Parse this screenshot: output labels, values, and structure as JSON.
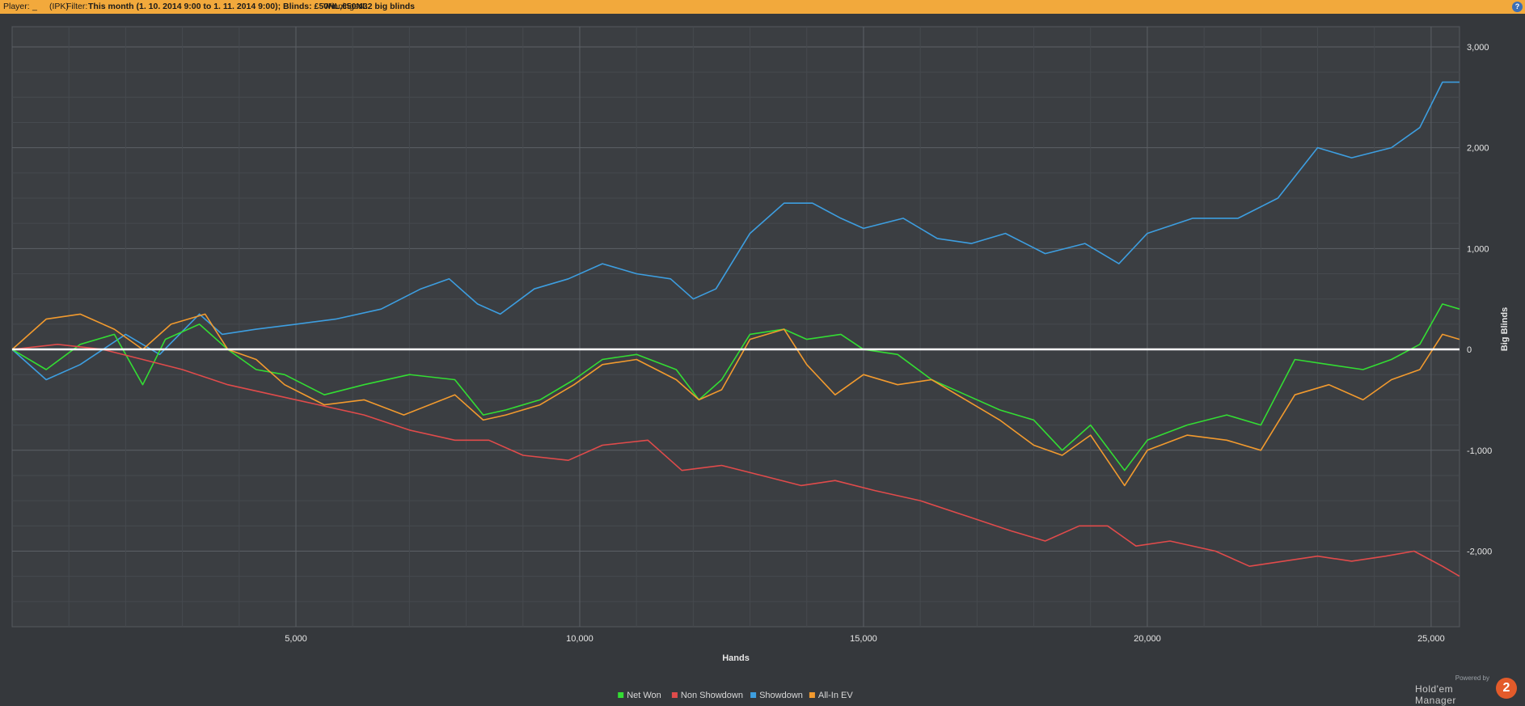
{
  "header": {
    "player_label": "Player:",
    "player_value": "_",
    "site_tag": "(IPK)",
    "filter_label": "Filter:",
    "filter_value": "This month (1. 10. 2014 9:00 to 1. 11. 2014 9:00); Blinds: £50NL,€50NL",
    "winnings_label": "Winnings:",
    "winnings_value": "432 big blinds",
    "help_glyph": "?"
  },
  "logo": {
    "powered_by": "Powered by",
    "name": "Hold'em Manager",
    "badge": "2"
  },
  "chart_data": {
    "type": "line",
    "xlabel": "Hands",
    "ylabel": "Big Blinds",
    "xlim": [
      0,
      25500
    ],
    "ylim": [
      -2750,
      3200
    ],
    "x_ticks": [
      5000,
      10000,
      15000,
      20000,
      25000
    ],
    "x_tick_labels": [
      "5,000",
      "10,000",
      "15,000",
      "20,000",
      "25,000"
    ],
    "y_ticks": [
      3000,
      2000,
      1000,
      0,
      -1000,
      -2000
    ],
    "y_tick_labels": [
      "3,000",
      "2,000",
      "1,000",
      "0",
      "-1,000",
      "-2,000"
    ],
    "grid": true,
    "legend_position": "bottom-center",
    "series": [
      {
        "name": "Showdown",
        "color": "#3d9ee0",
        "x": [
          0,
          600,
          1200,
          2000,
          2600,
          3300,
          3700,
          4300,
          5000,
          5700,
          6500,
          7200,
          7700,
          8200,
          8600,
          9200,
          9800,
          10400,
          11000,
          11600,
          12000,
          12400,
          13000,
          13600,
          14100,
          14600,
          15000,
          15700,
          16300,
          16900,
          17500,
          18200,
          18900,
          19500,
          20000,
          20800,
          21600,
          22300,
          23000,
          23600,
          24300,
          24800,
          25200,
          25500
        ],
        "y": [
          0,
          -300,
          -150,
          150,
          -50,
          350,
          150,
          200,
          250,
          300,
          400,
          600,
          700,
          450,
          350,
          600,
          700,
          850,
          750,
          700,
          500,
          600,
          1150,
          1450,
          1450,
          1300,
          1200,
          1300,
          1100,
          1050,
          1150,
          950,
          1050,
          850,
          1150,
          1300,
          1300,
          1500,
          2000,
          1900,
          2000,
          2200,
          2650,
          2650
        ]
      },
      {
        "name": "Net Won",
        "color": "#33dd33",
        "x": [
          0,
          600,
          1200,
          1800,
          2300,
          2700,
          3300,
          3800,
          4300,
          4800,
          5500,
          6200,
          7000,
          7800,
          8300,
          8700,
          9300,
          9900,
          10400,
          11000,
          11700,
          12100,
          12500,
          13000,
          13600,
          14000,
          14600,
          15000,
          15600,
          16200,
          16800,
          17400,
          18000,
          18500,
          19000,
          19600,
          20000,
          20700,
          21400,
          22000,
          22600,
          23200,
          23800,
          24300,
          24800,
          25200,
          25500
        ],
        "y": [
          0,
          -200,
          50,
          150,
          -350,
          100,
          250,
          0,
          -200,
          -250,
          -450,
          -350,
          -250,
          -300,
          -650,
          -600,
          -500,
          -300,
          -100,
          -50,
          -200,
          -500,
          -300,
          150,
          200,
          100,
          150,
          0,
          -50,
          -300,
          -450,
          -600,
          -700,
          -1000,
          -750,
          -1200,
          -900,
          -750,
          -650,
          -750,
          -100,
          -150,
          -200,
          -100,
          50,
          450,
          400
        ]
      },
      {
        "name": "All-In EV",
        "color": "#f29a2e",
        "x": [
          0,
          600,
          1200,
          1800,
          2300,
          2800,
          3400,
          3800,
          4300,
          4800,
          5500,
          6200,
          6900,
          7800,
          8300,
          8700,
          9300,
          9900,
          10400,
          11000,
          11700,
          12100,
          12500,
          13000,
          13600,
          14000,
          14500,
          15000,
          15600,
          16200,
          16800,
          17400,
          18000,
          18500,
          19000,
          19600,
          20000,
          20700,
          21400,
          22000,
          22600,
          23200,
          23800,
          24300,
          24800,
          25200,
          25500
        ],
        "y": [
          0,
          300,
          350,
          200,
          0,
          250,
          350,
          0,
          -100,
          -350,
          -550,
          -500,
          -650,
          -450,
          -700,
          -650,
          -550,
          -350,
          -150,
          -100,
          -300,
          -500,
          -400,
          100,
          200,
          -150,
          -450,
          -250,
          -350,
          -300,
          -500,
          -700,
          -950,
          -1050,
          -850,
          -1350,
          -1000,
          -850,
          -900,
          -1000,
          -450,
          -350,
          -500,
          -300,
          -200,
          150,
          100
        ]
      },
      {
        "name": "Non Showdown",
        "color": "#e04b4b",
        "x": [
          0,
          800,
          1600,
          2300,
          3000,
          3800,
          4600,
          5400,
          6200,
          7000,
          7800,
          8400,
          9000,
          9800,
          10400,
          11200,
          11800,
          12500,
          13200,
          13900,
          14500,
          15200,
          16000,
          16800,
          17600,
          18200,
          18800,
          19300,
          19800,
          20400,
          21200,
          21800,
          22400,
          23000,
          23600,
          24200,
          24700,
          25200,
          25500
        ],
        "y": [
          0,
          50,
          0,
          -100,
          -200,
          -350,
          -450,
          -550,
          -650,
          -800,
          -900,
          -900,
          -1050,
          -1100,
          -950,
          -900,
          -1200,
          -1150,
          -1250,
          -1350,
          -1300,
          -1400,
          -1500,
          -1650,
          -1800,
          -1900,
          -1750,
          -1750,
          -1950,
          -1900,
          -2000,
          -2150,
          -2100,
          -2050,
          -2100,
          -2050,
          -2000,
          -2150,
          -2250
        ]
      }
    ],
    "zero_line_color": "#ffffff"
  }
}
